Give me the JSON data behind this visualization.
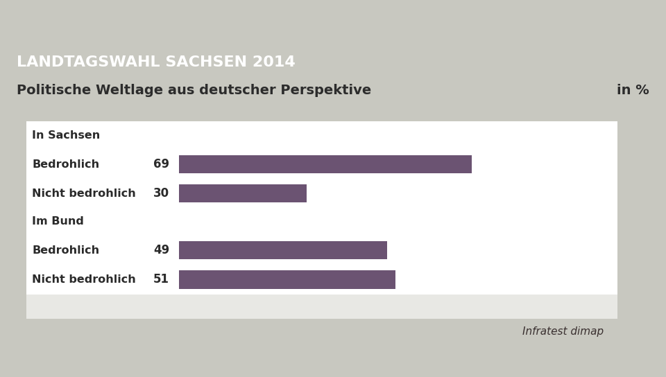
{
  "title_banner": "LANDTAGSWAHL SACHSEN 2014",
  "title_banner_bg": "#1c3d6e",
  "title_banner_color": "#ffffff",
  "subtitle": "Politische Weltlage aus deutscher Perspektive",
  "subtitle_unit": "in %",
  "subtitle_color": "#2c2c2c",
  "background_color": "#c8c8c0",
  "chart_bg": "#e8e8e4",
  "row_bg": "#ffffff",
  "bar_color": "#6b5372",
  "groups": [
    {
      "header": "In Sachsen",
      "rows": [
        {
          "label": "Bedrohlich",
          "value": 69
        },
        {
          "label": "Nicht bedrohlich",
          "value": 30
        }
      ]
    },
    {
      "header": "Im Bund",
      "rows": [
        {
          "label": "Bedrohlich",
          "value": 49
        },
        {
          "label": "Nicht bedrohlich",
          "value": 51
        }
      ]
    }
  ],
  "max_value": 100,
  "source": "Infratest dimap",
  "label_fontsize": 11.5,
  "value_fontsize": 12,
  "header_fontsize": 11.5,
  "banner_fontsize": 16,
  "subtitle_fontsize": 14,
  "source_fontsize": 11
}
